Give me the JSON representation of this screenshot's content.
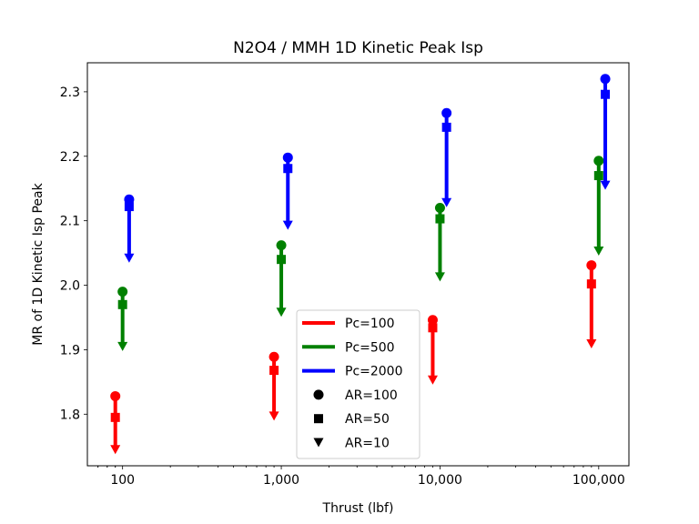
{
  "chart_data": {
    "type": "scatter",
    "title": "N2O4 / MMH 1D Kinetic Peak Isp",
    "xlabel": "Thrust (lbf)",
    "ylabel": "MR of 1D Kinetic Isp Peak",
    "xscale": "log",
    "xlim": [
      60,
      155000
    ],
    "ylim": [
      1.72,
      2.345
    ],
    "x_ticks": [
      100,
      1000,
      10000,
      100000
    ],
    "x_tick_labels": [
      "100",
      "1,000",
      "10,000",
      "100,000"
    ],
    "y_ticks": [
      1.8,
      1.9,
      2.0,
      2.1,
      2.2,
      2.3
    ],
    "y_tick_labels": [
      "1.8",
      "1.9",
      "2.0",
      "2.1",
      "2.2",
      "2.3"
    ],
    "thrust": [
      100,
      1000,
      10000,
      100000
    ],
    "series": [
      {
        "name": "Pc=100",
        "color": "#ff0000",
        "x_factor": 0.9,
        "AR100": [
          1.828,
          1.889,
          1.946,
          2.031
        ],
        "AR50": [
          1.795,
          1.868,
          1.934,
          2.002
        ],
        "AR10": [
          1.745,
          1.797,
          1.853,
          1.909
        ]
      },
      {
        "name": "Pc=500",
        "color": "#008000",
        "x_factor": 1.0,
        "AR100": [
          1.99,
          2.062,
          2.12,
          2.193
        ],
        "AR50": [
          1.97,
          2.04,
          2.103,
          2.17
        ],
        "AR10": [
          1.905,
          1.958,
          2.013,
          2.053
        ]
      },
      {
        "name": "Pc=2000",
        "color": "#0000ff",
        "x_factor": 1.1,
        "AR100": [
          2.133,
          2.198,
          2.267,
          2.32
        ],
        "AR50": [
          2.122,
          2.181,
          2.245,
          2.296
        ],
        "AR10": [
          2.042,
          2.093,
          2.128,
          2.155
        ]
      }
    ],
    "marker_legend": [
      {
        "label": "AR=100",
        "marker": "circle"
      },
      {
        "label": "AR=50",
        "marker": "square"
      },
      {
        "label": "AR=10",
        "marker": "triangle-down"
      }
    ],
    "legend_position": "lower-center",
    "grid": false
  }
}
